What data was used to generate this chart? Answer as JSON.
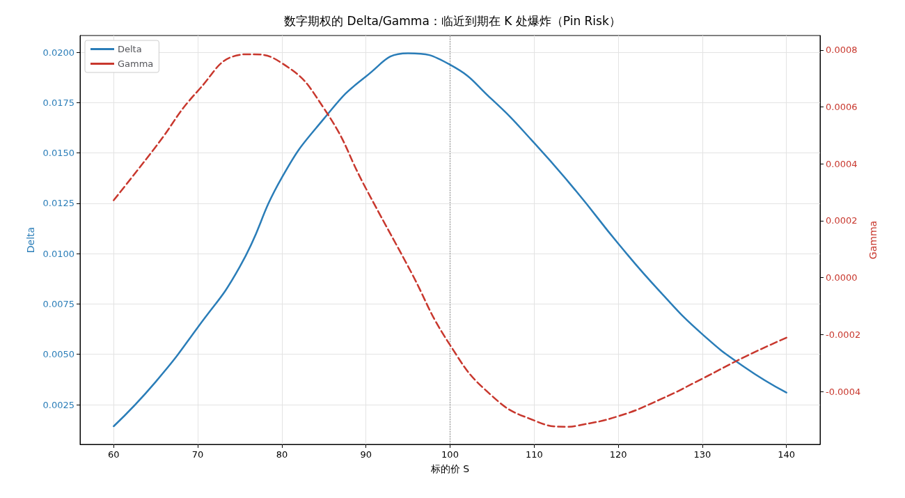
{
  "chart_data": {
    "type": "line",
    "title": "数字期权的 Delta/Gamma：临近到期在 K 处爆炸（Pin Risk）",
    "xlabel": "标的价 S",
    "ylabel": "Delta",
    "y2label": "Gamma",
    "xlim": [
      56,
      144
    ],
    "xticks": [
      60,
      70,
      80,
      90,
      100,
      110,
      120,
      130,
      140
    ],
    "ylim": [
      0.00053,
      0.02083
    ],
    "yticks": [
      {
        "value": 0.0025,
        "label": "0.0025"
      },
      {
        "value": 0.005,
        "label": "0.0050"
      },
      {
        "value": 0.0075,
        "label": "0.0075"
      },
      {
        "value": 0.01,
        "label": "0.0100"
      },
      {
        "value": 0.0125,
        "label": "0.0125"
      },
      {
        "value": 0.015,
        "label": "0.0150"
      },
      {
        "value": 0.0175,
        "label": "0.0175"
      },
      {
        "value": 0.02,
        "label": "0.0200"
      }
    ],
    "y2lim": [
      -0.000586,
      0.000851
    ],
    "y2ticks": [
      {
        "value": -0.0004,
        "label": "-0.0004"
      },
      {
        "value": -0.0002,
        "label": "-0.0002"
      },
      {
        "value": 0,
        "label": "0.0000"
      },
      {
        "value": 0.0002,
        "label": "0.0002"
      },
      {
        "value": 0.0004,
        "label": "0.0004"
      },
      {
        "value": 0.0006,
        "label": "0.0006"
      },
      {
        "value": 0.0008,
        "label": "0.0008"
      }
    ],
    "grid": true,
    "legend": "top left",
    "marker": "none",
    "ref_lines": [
      {
        "axis": "x",
        "value": 100,
        "color": "#777777",
        "line_style": "dotted"
      }
    ],
    "series": [
      {
        "name": "Delta",
        "color": "#2a7db8",
        "line_style": "solid",
        "x": [
          60,
          65,
          70,
          75,
          80,
          85,
          90,
          95,
          100,
          105,
          110,
          115,
          120,
          125,
          130,
          135,
          140
        ],
        "values": [
          0.00143,
          0.00364,
          0.00634,
          0.00935,
          0.01378,
          0.0167,
          0.0188,
          0.01995,
          0.01938,
          0.01765,
          0.0155,
          0.0131,
          0.0105,
          0.0081,
          0.006,
          0.00437,
          0.0031
        ]
      },
      {
        "name": "Gamma",
        "color": "#c8372d",
        "line_style": "dashed",
        "axis": "y2",
        "x": [
          60,
          65,
          70,
          75,
          76,
          80,
          85,
          90,
          95,
          100,
          105,
          110,
          114,
          115,
          120,
          125,
          130,
          135,
          140
        ],
        "values": [
          0.000272,
          0.00046,
          0.000656,
          0.000783,
          0.000785,
          0.000754,
          0.000595,
          0.000313,
          4e-05,
          -0.000237,
          -0.000416,
          -0.000502,
          -0.000524,
          -0.000521,
          -0.000487,
          -0.000428,
          -0.000355,
          -0.000279,
          -0.000211
        ]
      }
    ]
  }
}
